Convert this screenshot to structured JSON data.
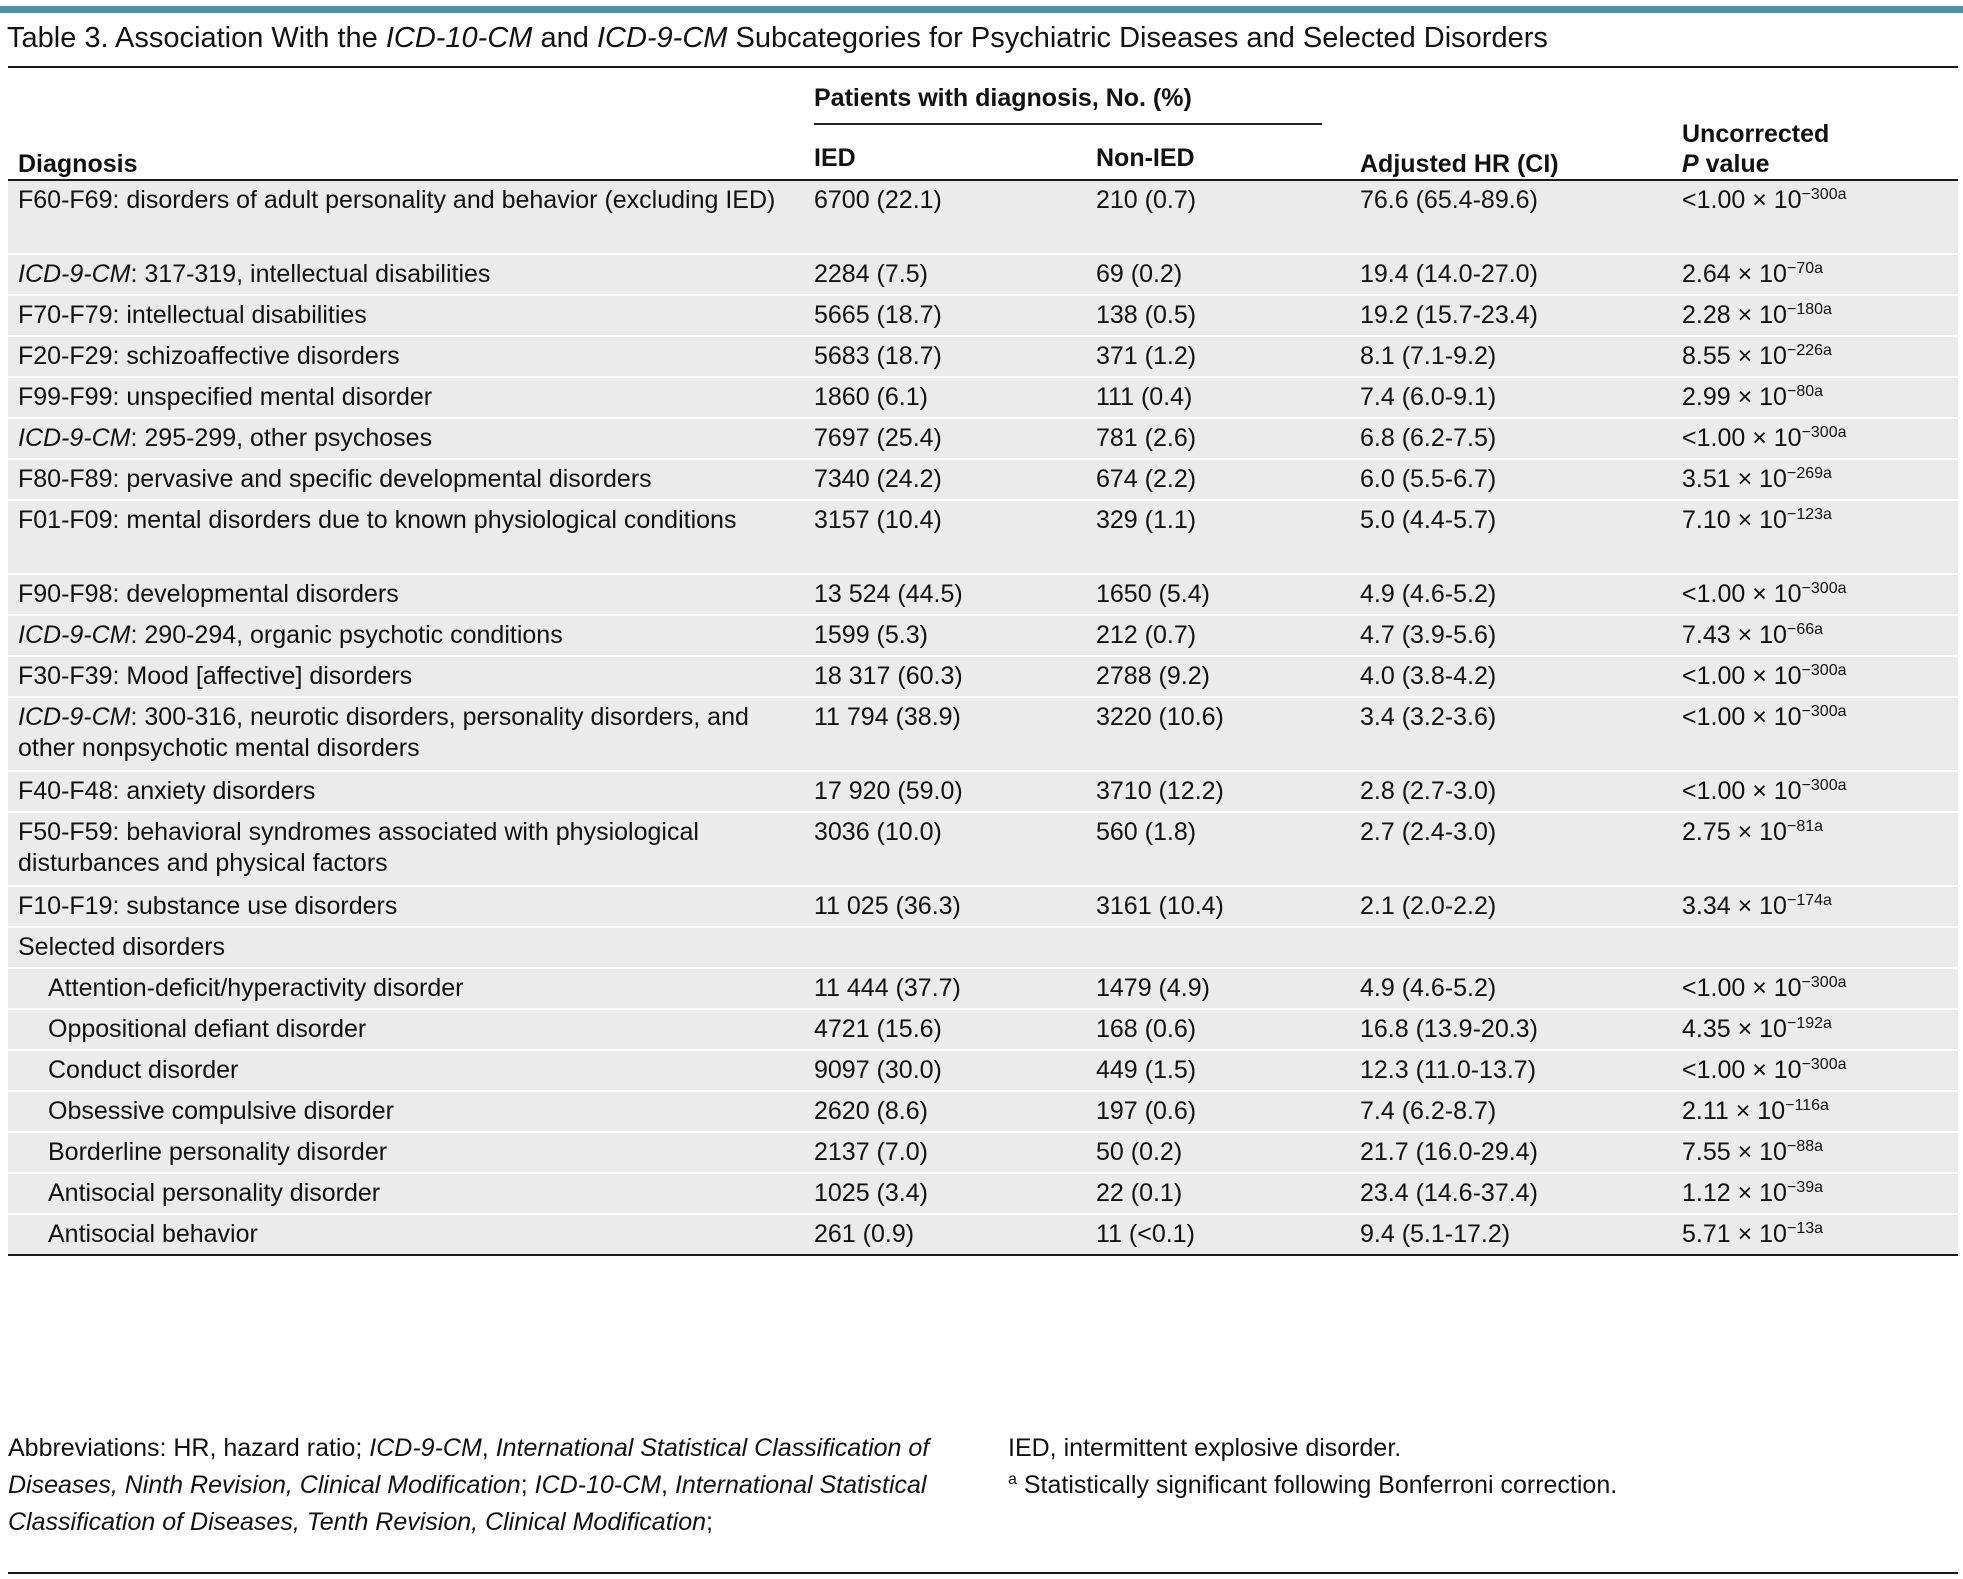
{
  "title": {
    "prefix": "Table 3. Association With the ",
    "icd10": "ICD-10-CM",
    "mid": " and ",
    "icd9": "ICD-9-CM",
    "suffix": " Subcategories for Psychiatric Diseases and Selected Disorders"
  },
  "header": {
    "diagnosis": "Diagnosis",
    "group": "Patients with diagnosis, No. (%)",
    "ied": "IED",
    "nonied": "Non-IED",
    "hr": "Adjusted HR (CI)",
    "p_line1": "Uncorrected",
    "p_italic": "P",
    "p_rest": " value"
  },
  "rows": [
    {
      "lead": "",
      "diag": "F60-F69: disorders of adult personality and behavior (excluding IED)",
      "ied": "6700 (22.1)",
      "non": "210 (0.7)",
      "hr": "76.6 (65.4-89.6)",
      "pbase": "<1.00 × 10",
      "pexp": "−300a",
      "tall": true
    },
    {
      "lead": "ICD-9-CM",
      "diag": ": 317-319, intellectual disabilities",
      "ied": "2284 (7.5)",
      "non": "69 (0.2)",
      "hr": "19.4 (14.0-27.0)",
      "pbase": "2.64 × 10",
      "pexp": "−70a"
    },
    {
      "lead": "",
      "diag": "F70-F79: intellectual disabilities",
      "ied": "5665 (18.7)",
      "non": "138 (0.5)",
      "hr": "19.2 (15.7-23.4)",
      "pbase": "2.28 × 10",
      "pexp": "−180a"
    },
    {
      "lead": "",
      "diag": "F20-F29: schizoaffective disorders",
      "ied": "5683 (18.7)",
      "non": "371 (1.2)",
      "hr": "8.1 (7.1-9.2)",
      "pbase": "8.55 × 10",
      "pexp": "−226a"
    },
    {
      "lead": "",
      "diag": "F99-F99: unspecified mental disorder",
      "ied": "1860 (6.1)",
      "non": "111 (0.4)",
      "hr": "7.4 (6.0-9.1)",
      "pbase": "2.99 × 10",
      "pexp": "−80a"
    },
    {
      "lead": "ICD-9-CM",
      "diag": ": 295-299, other psychoses",
      "ied": "7697 (25.4)",
      "non": "781 (2.6)",
      "hr": "6.8 (6.2-7.5)",
      "pbase": "<1.00 × 10",
      "pexp": "−300a"
    },
    {
      "lead": "",
      "diag": "F80-F89: pervasive and specific developmental disorders",
      "ied": "7340 (24.2)",
      "non": "674 (2.2)",
      "hr": "6.0 (5.5-6.7)",
      "pbase": "3.51 × 10",
      "pexp": "−269a"
    },
    {
      "lead": "",
      "diag": "F01-F09: mental disorders due to known physiological conditions",
      "ied": "3157 (10.4)",
      "non": "329 (1.1)",
      "hr": "5.0 (4.4-5.7)",
      "pbase": "7.10 × 10",
      "pexp": "−123a",
      "tall": true
    },
    {
      "lead": "",
      "diag": "F90-F98: developmental disorders",
      "ied": "13 524 (44.5)",
      "non": "1650 (5.4)",
      "hr": "4.9 (4.6-5.2)",
      "pbase": "<1.00 × 10",
      "pexp": "−300a"
    },
    {
      "lead": "ICD-9-CM",
      "diag": ": 290-294, organic psychotic conditions",
      "ied": "1599 (5.3)",
      "non": "212 (0.7)",
      "hr": "4.7 (3.9-5.6)",
      "pbase": "7.43 × 10",
      "pexp": "−66a"
    },
    {
      "lead": "",
      "diag": "F30-F39: Mood [affective] disorders",
      "ied": "18 317 (60.3)",
      "non": "2788 (9.2)",
      "hr": "4.0 (3.8-4.2)",
      "pbase": "<1.00 × 10",
      "pexp": "−300a"
    },
    {
      "lead": "ICD-9-CM",
      "diag": ": 300-316, neurotic disorders, personality disorders, and other nonpsychotic mental disorders",
      "ied": "11 794 (38.9)",
      "non": "3220 (10.6)",
      "hr": "3.4 (3.2-3.6)",
      "pbase": "<1.00 × 10",
      "pexp": "−300a",
      "tall": true
    },
    {
      "lead": "",
      "diag": "F40-F48: anxiety disorders",
      "ied": "17 920 (59.0)",
      "non": "3710 (12.2)",
      "hr": "2.8 (2.7-3.0)",
      "pbase": "<1.00 × 10",
      "pexp": "−300a"
    },
    {
      "lead": "",
      "diag": "F50-F59: behavioral syndromes associated with physiological disturbances and physical factors",
      "ied": "3036 (10.0)",
      "non": "560 (1.8)",
      "hr": "2.7 (2.4-3.0)",
      "pbase": "2.75 × 10",
      "pexp": "−81a",
      "tall": true
    },
    {
      "lead": "",
      "diag": "F10-F19: substance use disorders",
      "ied": "11 025 (36.3)",
      "non": "3161 (10.4)",
      "hr": "2.1 (2.0-2.2)",
      "pbase": "3.34 × 10",
      "pexp": "−174a"
    }
  ],
  "selected_heading": "Selected disorders",
  "selected_rows": [
    {
      "diag": "Attention-deficit/hyperactivity disorder",
      "ied": "11 444 (37.7)",
      "non": "1479 (4.9)",
      "hr": "4.9 (4.6-5.2)",
      "pbase": "<1.00 × 10",
      "pexp": "−300a"
    },
    {
      "diag": "Oppositional defiant disorder",
      "ied": "4721 (15.6)",
      "non": "168 (0.6)",
      "hr": "16.8 (13.9-20.3)",
      "pbase": "4.35 × 10",
      "pexp": "−192a"
    },
    {
      "diag": "Conduct disorder",
      "ied": "9097 (30.0)",
      "non": "449 (1.5)",
      "hr": "12.3 (11.0-13.7)",
      "pbase": "<1.00 × 10",
      "pexp": "−300a"
    },
    {
      "diag": "Obsessive compulsive disorder",
      "ied": "2620 (8.6)",
      "non": "197 (0.6)",
      "hr": "7.4 (6.2-8.7)",
      "pbase": "2.11 × 10",
      "pexp": "−116a"
    },
    {
      "diag": "Borderline personality disorder",
      "ied": "2137 (7.0)",
      "non": "50 (0.2)",
      "hr": "21.7 (16.0-29.4)",
      "pbase": "7.55 × 10",
      "pexp": "−88a"
    },
    {
      "diag": "Antisocial personality disorder",
      "ied": "1025 (3.4)",
      "non": "22 (0.1)",
      "hr": "23.4 (14.6-37.4)",
      "pbase": "1.12 × 10",
      "pexp": "−39a"
    },
    {
      "diag": "Antisocial behavior",
      "ied": "261 (0.9)",
      "non": "11 (<0.1)",
      "hr": "9.4 (5.1-17.2)",
      "pbase": "5.71 × 10",
      "pexp": "−13a"
    }
  ],
  "footnote": {
    "abbrev_label": "Abbreviations: HR, hazard ratio; ",
    "icd9": "ICD-9-CM",
    "sep1": ", ",
    "icd9_full": "International Statistical Classification of Diseases, Ninth Revision, Clinical Modification",
    "sep2": "; ",
    "icd10": "ICD-10-CM",
    "sep3": ", ",
    "icd10_full": "International Statistical Classification of Diseases, Tenth Revision, Clinical Modification",
    "sep4": ";",
    "ied_def": "IED, intermittent explosive disorder.",
    "sig_mark": "a",
    "sig_text": " Statistically significant following Bonferroni correction."
  }
}
